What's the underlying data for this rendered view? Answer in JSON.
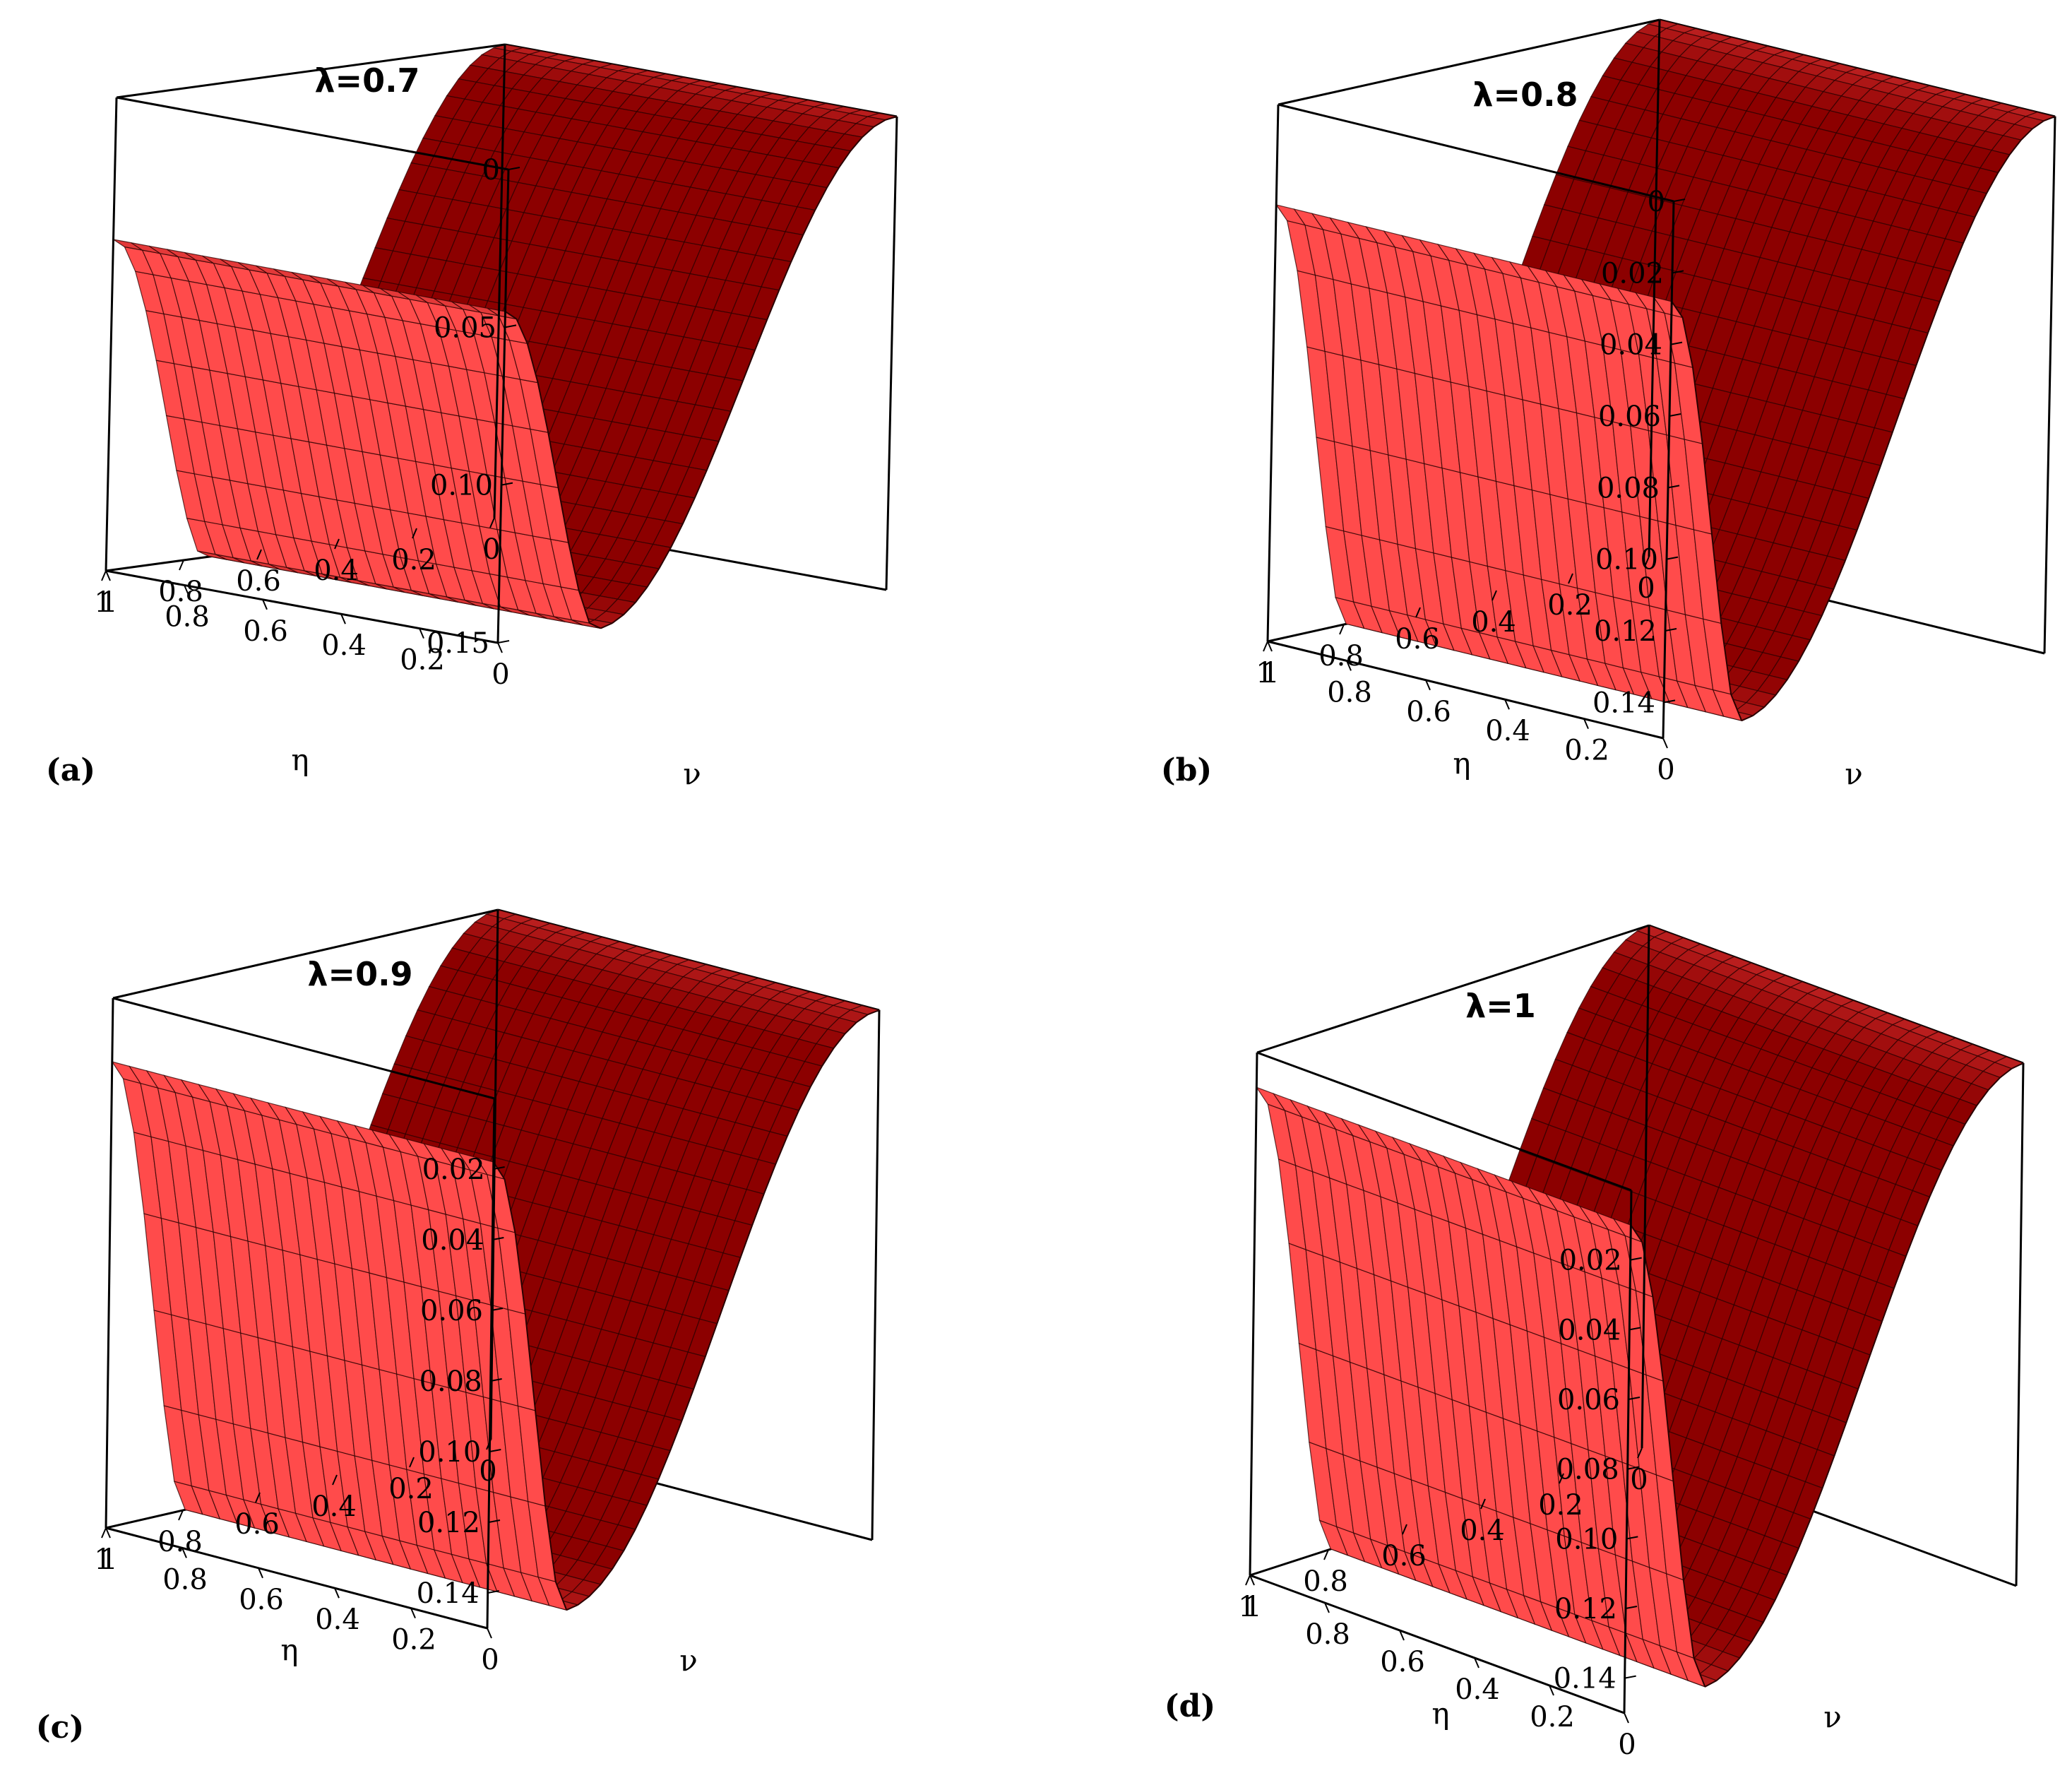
{
  "figure": {
    "colors": {
      "surface": "#ff4b4b",
      "surface_dark": "#8c0000",
      "grid": "#2a0000",
      "box": "#000000"
    }
  },
  "chart_data": [
    {
      "type": "surface3d",
      "panel_label": "(a)",
      "title": "λ=0.7",
      "xlabel": "η",
      "ylabel": "ν",
      "x_ticks": [
        "0",
        "0.2",
        "0.4",
        "0.6",
        "0.8",
        "1"
      ],
      "y_ticks": [
        "0",
        "0.2",
        "0.4",
        "0.6",
        "0.8",
        "1"
      ],
      "z_ticks": [
        "0",
        "0.05",
        "0.10",
        "0.15"
      ],
      "xlim": [
        0,
        1
      ],
      "ylim": [
        0,
        1
      ],
      "zlim": [
        0,
        0.15
      ],
      "z_axis_inverted": true,
      "z_at_v0": 0.0,
      "z_at_v1": 0.045,
      "z_max": 0.15,
      "nu_at_max": 0.75
    },
    {
      "type": "surface3d",
      "panel_label": "(b)",
      "title": "λ=0.8",
      "xlabel": "η",
      "ylabel": "ν",
      "x_ticks": [
        "0",
        "0.2",
        "0.4",
        "0.6",
        "0.8",
        "1"
      ],
      "y_ticks": [
        "0",
        "0.2",
        "0.4",
        "0.6",
        "0.8",
        "1"
      ],
      "z_ticks": [
        "0",
        "0.02",
        "0.04",
        "0.06",
        "0.08",
        "0.10",
        "0.12",
        "0.14"
      ],
      "xlim": [
        0,
        1
      ],
      "ylim": [
        0,
        1
      ],
      "zlim": [
        0,
        0.15
      ],
      "z_axis_inverted": true,
      "z_at_v0": 0.0,
      "z_at_v1": 0.028,
      "z_max": 0.15,
      "nu_at_max": 0.8
    },
    {
      "type": "surface3d",
      "panel_label": "(c)",
      "title": "λ=0.9",
      "xlabel": "η",
      "ylabel": "ν",
      "x_ticks": [
        "0",
        "0.2",
        "0.4",
        "0.6",
        "0.8",
        "1"
      ],
      "y_ticks": [
        "0",
        "0.2",
        "0.4",
        "0.6",
        "0.8",
        "1"
      ],
      "z_ticks": [
        "0.02",
        "0.04",
        "0.06",
        "0.08",
        "0.10",
        "0.12",
        "0.14"
      ],
      "xlim": [
        0,
        1
      ],
      "ylim": [
        0,
        1
      ],
      "zlim": [
        0,
        0.15
      ],
      "z_axis_inverted": true,
      "z_at_v0": 0.0,
      "z_at_v1": 0.018,
      "z_max": 0.15,
      "nu_at_max": 0.8
    },
    {
      "type": "surface3d",
      "panel_label": "(d)",
      "title": "λ=1",
      "xlabel": "η",
      "ylabel": "ν",
      "x_ticks": [
        "0",
        "0.2",
        "0.4",
        "0.6",
        "0.8",
        "1"
      ],
      "y_ticks": [
        "0",
        "0.2",
        "0.4",
        "0.6",
        "0.8",
        "1"
      ],
      "z_ticks": [
        "0.02",
        "0.04",
        "0.06",
        "0.08",
        "0.10",
        "0.12",
        "0.14"
      ],
      "xlim": [
        0,
        1
      ],
      "ylim": [
        0,
        1
      ],
      "zlim": [
        0,
        0.15
      ],
      "z_axis_inverted": true,
      "z_at_v0": 0.0,
      "z_at_v1": 0.01,
      "z_max": 0.15,
      "nu_at_max": 0.8
    }
  ]
}
